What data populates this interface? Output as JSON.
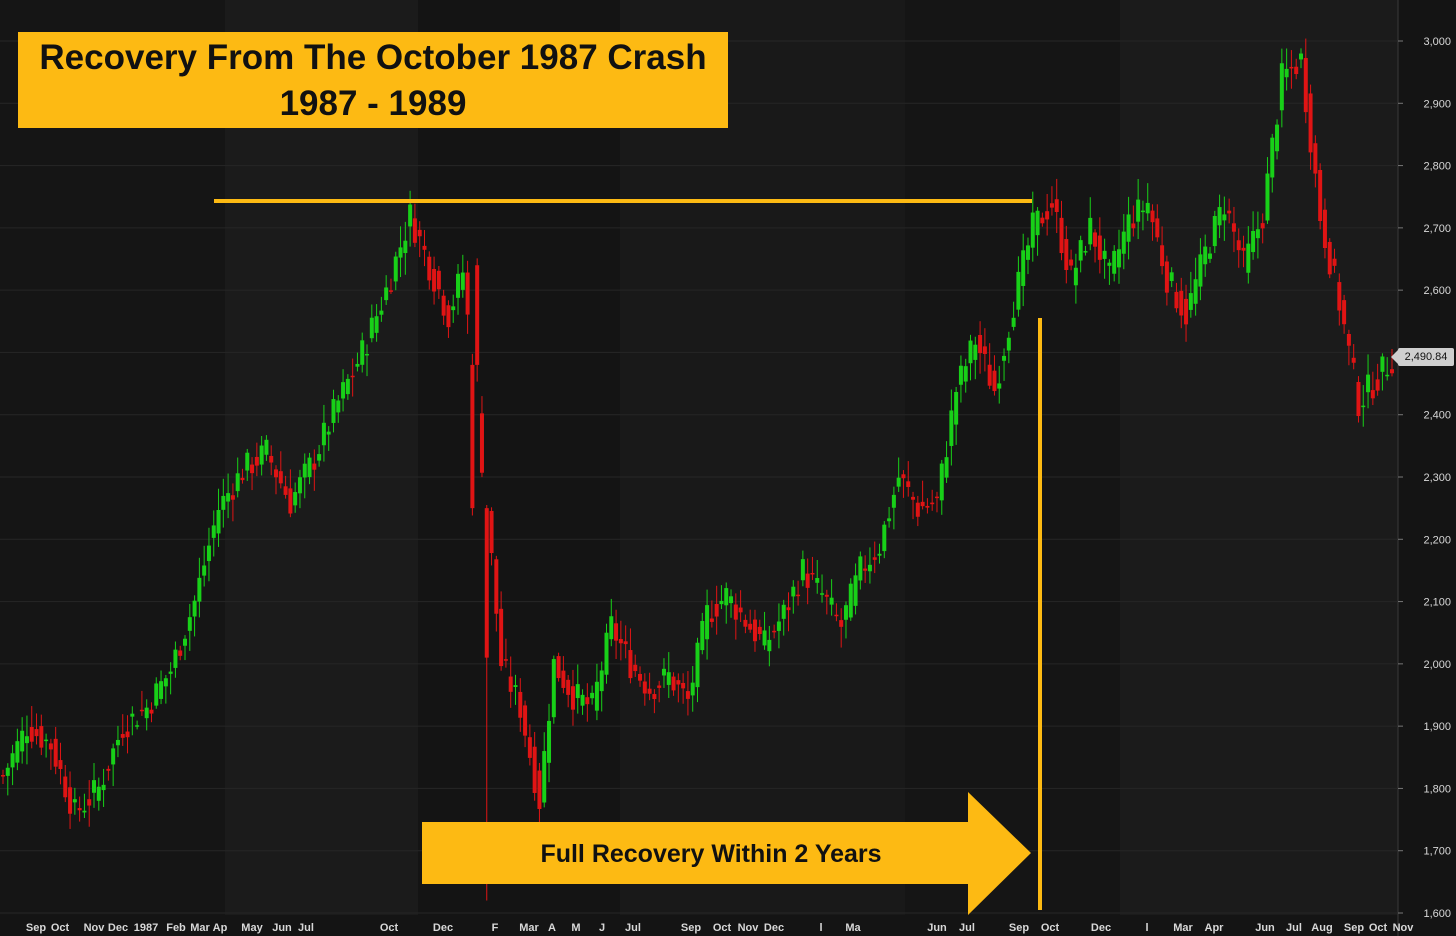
{
  "chart_data": {
    "type": "candlestick",
    "title": "Recovery From The October 1987 Crash",
    "subtitle": "1987 - 1989",
    "annotation": "Full Recovery Within 2 Years",
    "last_price_label": "2,490.84",
    "ylim": [
      1600,
      3000
    ],
    "y_ticks": [
      "1,600",
      "1,700",
      "1,800",
      "1,900",
      "2,000",
      "2,100",
      "2,200",
      "2,300",
      "2,400",
      "2,500",
      "2,600",
      "2,700",
      "2,800",
      "2,900",
      "3,000"
    ],
    "y_tick_values": [
      1600,
      1700,
      1800,
      1900,
      2000,
      2100,
      2200,
      2300,
      2400,
      2500,
      2600,
      2700,
      2800,
      2900,
      3000
    ],
    "x_ticks": [
      "Sep",
      "Oct",
      "Nov",
      "Dec",
      "1987",
      "Feb",
      "Mar",
      "Ap",
      "May",
      "Jun",
      "Jul",
      "Oct",
      "Dec",
      "F",
      "Mar",
      "A",
      "M",
      "J",
      "Jul",
      "Sep",
      "Oct",
      "Nov",
      "Dec",
      "l",
      "Ma",
      "Jun",
      "Jul",
      "Sep",
      "Oct",
      "Dec",
      "l",
      "Mar",
      "Apr",
      "Jun",
      "Jul",
      "Aug",
      "Sep",
      "Oct",
      "Nov"
    ],
    "pre_crash_high": 2740,
    "crash_low": 1620,
    "colors": {
      "up": "#18D018",
      "down": "#E01414",
      "accent": "#FDBA13",
      "background": "#161616",
      "grid": "#262626"
    },
    "path_points": [
      [
        0,
        1820
      ],
      [
        5,
        1900
      ],
      [
        10,
        1870
      ],
      [
        15,
        1760
      ],
      [
        20,
        1800
      ],
      [
        25,
        1900
      ],
      [
        30,
        1930
      ],
      [
        35,
        1990
      ],
      [
        40,
        2100
      ],
      [
        45,
        2250
      ],
      [
        50,
        2310
      ],
      [
        55,
        2340
      ],
      [
        60,
        2260
      ],
      [
        65,
        2330
      ],
      [
        70,
        2420
      ],
      [
        75,
        2500
      ],
      [
        80,
        2600
      ],
      [
        85,
        2720
      ],
      [
        89,
        2640
      ],
      [
        93,
        2560
      ],
      [
        96,
        2630
      ],
      [
        98,
        2480
      ],
      [
        101,
        2250
      ],
      [
        104,
        2000
      ],
      [
        108,
        1930
      ],
      [
        112,
        1780
      ],
      [
        115,
        2000
      ],
      [
        119,
        1950
      ],
      [
        123,
        1930
      ],
      [
        127,
        2060
      ],
      [
        131,
        2000
      ],
      [
        135,
        1960
      ],
      [
        139,
        1980
      ],
      [
        143,
        1940
      ],
      [
        147,
        2080
      ],
      [
        151,
        2110
      ],
      [
        155,
        2070
      ],
      [
        159,
        2030
      ],
      [
        163,
        2080
      ],
      [
        167,
        2150
      ],
      [
        171,
        2110
      ],
      [
        175,
        2060
      ],
      [
        179,
        2150
      ],
      [
        183,
        2190
      ],
      [
        187,
        2300
      ],
      [
        191,
        2250
      ],
      [
        195,
        2260
      ],
      [
        199,
        2440
      ],
      [
        203,
        2520
      ],
      [
        207,
        2440
      ],
      [
        211,
        2580
      ],
      [
        215,
        2700
      ],
      [
        219,
        2740
      ],
      [
        223,
        2620
      ],
      [
        227,
        2700
      ],
      [
        231,
        2620
      ],
      [
        235,
        2710
      ],
      [
        239,
        2740
      ],
      [
        243,
        2620
      ],
      [
        247,
        2560
      ],
      [
        251,
        2660
      ],
      [
        255,
        2740
      ],
      [
        259,
        2640
      ],
      [
        263,
        2720
      ],
      [
        267,
        2940
      ],
      [
        271,
        2970
      ],
      [
        275,
        2720
      ],
      [
        279,
        2580
      ],
      [
        283,
        2420
      ],
      [
        287,
        2460
      ],
      [
        290,
        2490
      ]
    ]
  }
}
